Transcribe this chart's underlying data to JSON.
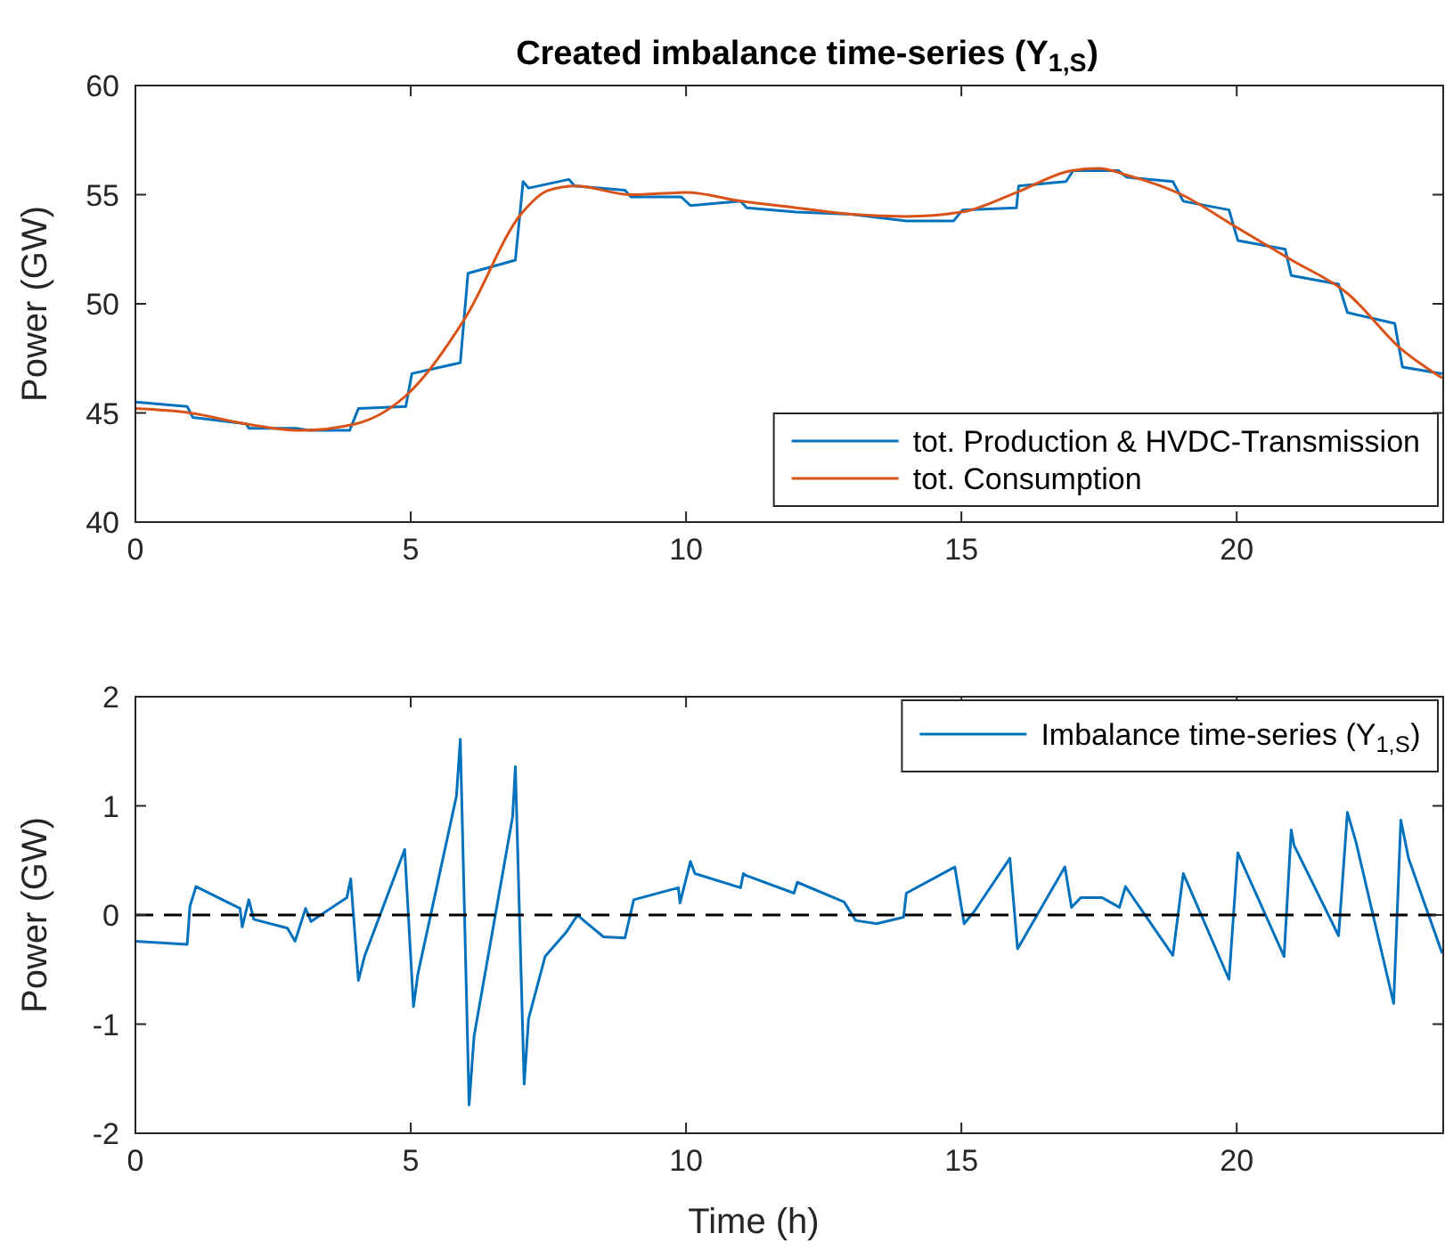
{
  "chart_data": [
    {
      "type": "line",
      "title": "Created imbalance time-series (Y$_{1,S}$)",
      "ylabel": "Power (GW)",
      "xlim": [
        0,
        23.75
      ],
      "xticks": [
        0,
        5,
        10,
        15,
        20
      ],
      "ylim": [
        40,
        60
      ],
      "yticks": [
        40,
        45,
        50,
        55,
        60
      ],
      "legend": "bottom right",
      "series": [
        {
          "name": "tot. Production & HVDC-Transmission",
          "color": "#0072bd",
          "x": [
            0,
            0.94,
            1.04,
            2.01,
            2.06,
            2.92,
            3.16,
            3.89,
            4.05,
            4.91,
            5.02,
            5.9,
            6.04,
            6.9,
            7.04,
            7.14,
            7.87,
            7.98,
            8.89,
            9.0,
            9.91,
            10.08,
            10.99,
            11.1,
            12.0,
            13.0,
            14.0,
            14.86,
            15.02,
            16.0,
            16.04,
            16.9,
            17.03,
            17.85,
            18.0,
            18.84,
            19.03,
            19.86,
            20.02,
            20.88,
            20.99,
            21.85,
            22.01,
            22.87,
            23.01,
            23.73
          ],
          "values": [
            45.5,
            45.3,
            44.8,
            44.5,
            44.3,
            44.3,
            44.2,
            44.2,
            45.2,
            45.3,
            46.8,
            47.3,
            51.4,
            52.0,
            55.6,
            55.3,
            55.7,
            55.4,
            55.2,
            54.9,
            54.9,
            54.5,
            54.7,
            54.4,
            54.2,
            54.1,
            53.8,
            53.8,
            54.3,
            54.4,
            55.4,
            55.6,
            56.1,
            56.1,
            55.8,
            55.6,
            54.7,
            54.3,
            52.9,
            52.5,
            51.3,
            50.9,
            49.6,
            49.1,
            47.1,
            46.8
          ]
        },
        {
          "name": "tot. Consumption",
          "color": "#d95319",
          "x": [
            0,
            1,
            2,
            3,
            4,
            5,
            6,
            7,
            7.5,
            8,
            9,
            10,
            11,
            12,
            13,
            14,
            15,
            16,
            17,
            17.5,
            18,
            19,
            20,
            21,
            22,
            23,
            23.73
          ],
          "values": [
            45.2,
            45.0,
            44.5,
            44.2,
            44.5,
            46.0,
            49.4,
            54.1,
            55.2,
            55.4,
            55.0,
            55.1,
            54.7,
            54.4,
            54.1,
            54.0,
            54.2,
            55.1,
            56.1,
            56.2,
            55.9,
            55.0,
            53.5,
            52.0,
            50.5,
            47.9,
            46.6
          ]
        }
      ]
    },
    {
      "type": "line",
      "xlabel": "Time (h)",
      "ylabel": "Power (GW)",
      "xlim": [
        0,
        23.75
      ],
      "xticks": [
        0,
        5,
        10,
        15,
        20
      ],
      "ylim": [
        -2,
        2
      ],
      "yticks": [
        -2,
        -1,
        0,
        1,
        2
      ],
      "legend": "top right",
      "ref_lines": [
        {
          "axis": "y",
          "value": 0,
          "color": "#000000",
          "line_style": "dashed"
        }
      ],
      "series": [
        {
          "name": "Imbalance time-series (Y$_{1,S}$)",
          "color": "#0072bd",
          "x": [
            0,
            0.94,
            0.99,
            1.1,
            1.9,
            1.94,
            2.06,
            2.15,
            2.76,
            2.9,
            3.09,
            3.19,
            3.84,
            3.91,
            4.05,
            4.16,
            4.89,
            5.05,
            5.13,
            5.83,
            5.9,
            6.06,
            6.15,
            6.85,
            6.9,
            7.06,
            7.14,
            7.44,
            7.82,
            8.03,
            8.14,
            8.5,
            8.89,
            9.05,
            9.86,
            9.89,
            10.08,
            10.16,
            10.99,
            11.04,
            11.1,
            11.96,
            12.02,
            12.87,
            13.08,
            13.46,
            13.95,
            14.0,
            14.88,
            15.05,
            15.23,
            15.88,
            16.02,
            16.88,
            17.0,
            17.17,
            17.55,
            17.87,
            17.98,
            18.84,
            19.03,
            19.86,
            20.02,
            20.08,
            20.86,
            20.99,
            21.04,
            21.85,
            22.01,
            22.17,
            22.85,
            22.98,
            23.12,
            23.73
          ],
          "values": [
            -0.24,
            -0.27,
            0.08,
            0.26,
            0.06,
            -0.11,
            0.14,
            -0.04,
            -0.12,
            -0.24,
            0.06,
            -0.06,
            0.16,
            0.33,
            -0.6,
            -0.38,
            0.6,
            -0.84,
            -0.54,
            1.09,
            1.61,
            -1.74,
            -1.11,
            0.9,
            1.36,
            -1.55,
            -0.95,
            -0.38,
            -0.16,
            0,
            -0.05,
            -0.2,
            -0.21,
            0.14,
            0.25,
            0.11,
            0.49,
            0.38,
            0.25,
            0.38,
            0.36,
            0.2,
            0.3,
            0.12,
            -0.05,
            -0.08,
            -0.02,
            0.2,
            0.44,
            -0.08,
            0.03,
            0.52,
            -0.31,
            0.44,
            0.07,
            0.16,
            0.16,
            0.07,
            0.26,
            -0.37,
            0.38,
            -0.59,
            0.57,
            0.5,
            -0.38,
            0.78,
            0.64,
            -0.19,
            0.94,
            0.66,
            -0.81,
            0.87,
            0.52,
            -0.35
          ]
        }
      ]
    }
  ]
}
